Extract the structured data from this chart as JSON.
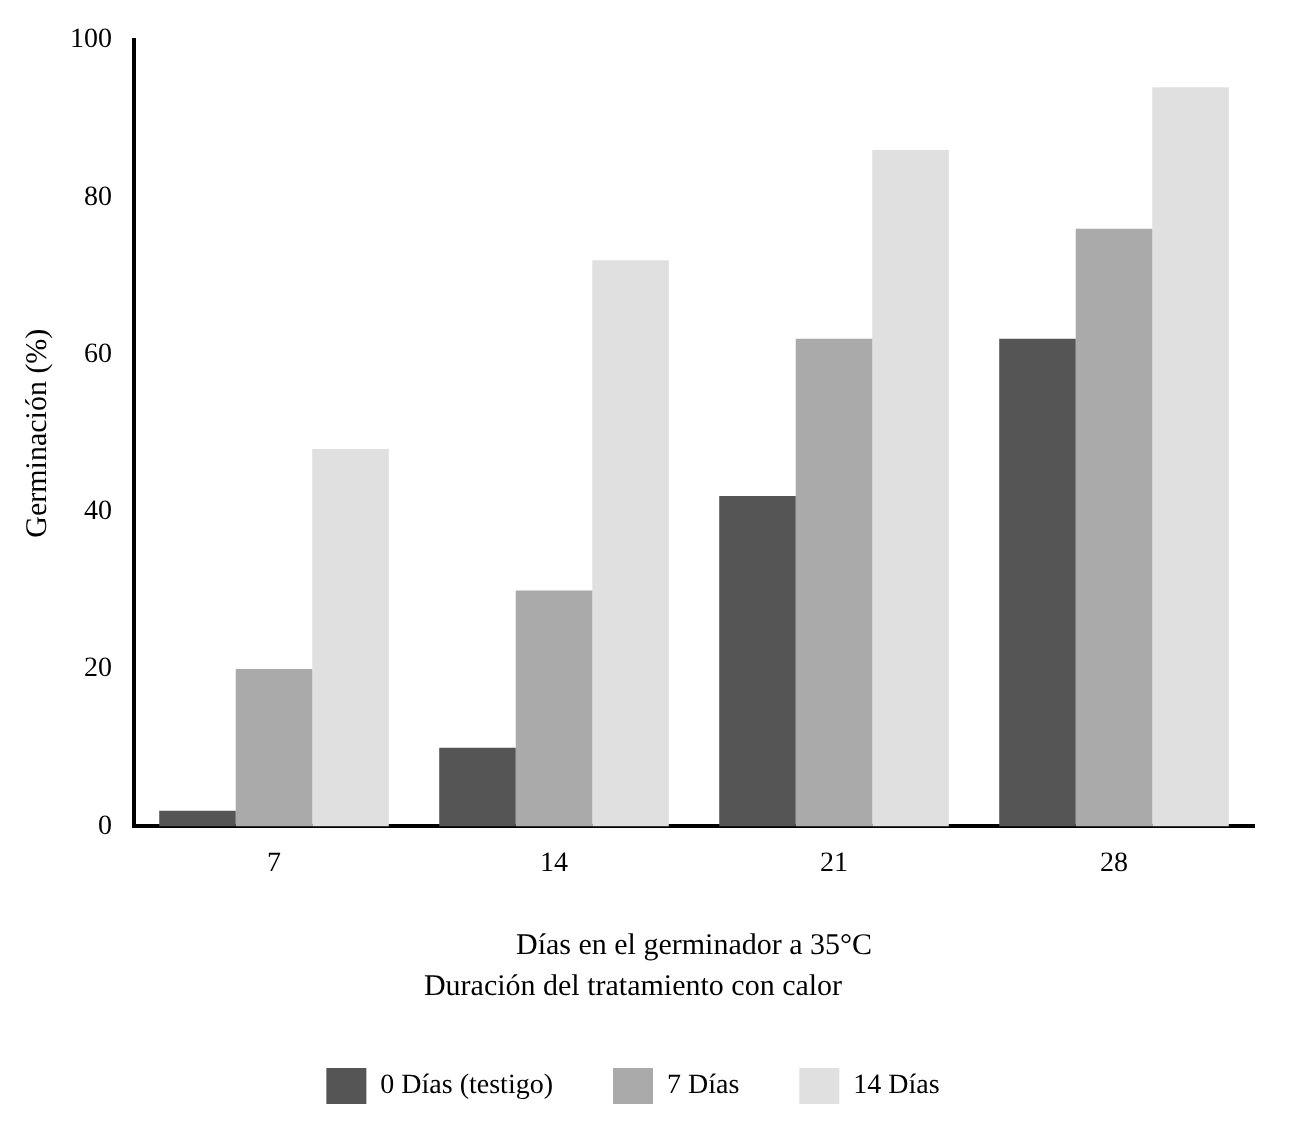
{
  "chart_data": {
    "type": "bar",
    "xlabel": "Días en el germinador a 35°C",
    "ylabel": "Germinación (%)",
    "legend_title": "Duración del tratamiento con calor",
    "categories": [
      "7",
      "14",
      "21",
      "28"
    ],
    "series": [
      {
        "name": "0 Días (testigo)",
        "color": "#555555",
        "values": [
          2,
          10,
          42,
          62
        ]
      },
      {
        "name": "7 Días",
        "color": "#aaaaaa",
        "values": [
          20,
          30,
          62,
          76
        ]
      },
      {
        "name": "14 Días",
        "color": "#e0e0e0",
        "values": [
          48,
          72,
          86,
          94
        ]
      }
    ],
    "ylim": [
      0,
      100
    ],
    "yticks": [
      0,
      20,
      40,
      60,
      80,
      100
    ],
    "grid": false,
    "legend": "bottom"
  }
}
